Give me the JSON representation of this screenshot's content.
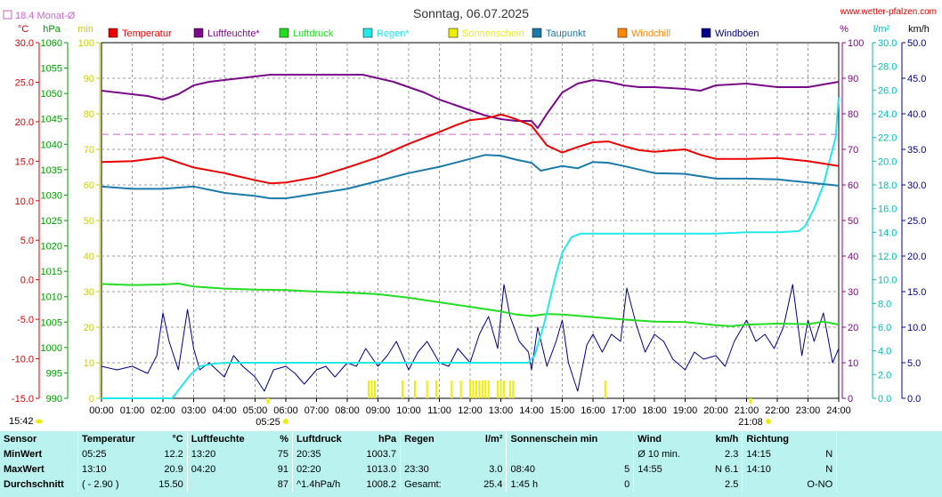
{
  "title": "Sonntag, 06.07.2025",
  "site": "www.wetter-pfalzen.com",
  "monthly_avg_label": "18.4 Monat-Ø",
  "unit_labels": {
    "celsius": "°C",
    "hpa": "hPa",
    "min": "min",
    "percent": "%",
    "lm2": "l/m²",
    "kmh": "km/h"
  },
  "time_labels": {
    "sunrise": "05:25",
    "sunset": "21:08",
    "left_time": "15:42"
  },
  "colors": {
    "temperature": "#ee0000",
    "humidity": "#7a0a8a",
    "pressure": "#22dd22",
    "rain": "#22e8e8",
    "sunshine": "#eeee00",
    "dewpoint": "#1a7aaa",
    "windchill": "#ff8800",
    "gusts": "#000088",
    "avg_line": "#cc66cc",
    "left_celsius": "#dd0000",
    "left_hpa": "#009900",
    "left_min": "#cccc00",
    "right_pct": "#880088",
    "right_lm2": "#00bbbb",
    "stats_bg": "#b9f2ee"
  },
  "chart_data": {
    "type": "line",
    "title": "Sonntag, 06.07.2025",
    "x_range_hours": [
      0,
      24
    ],
    "x_tick_labels": [
      "00:00",
      "01:00",
      "02:00",
      "03:00",
      "04:00",
      "05:00",
      "06:00",
      "07:00",
      "08:00",
      "09:00",
      "10:00",
      "11:00",
      "12:00",
      "13:00",
      "14:00",
      "15:00",
      "16:00",
      "17:00",
      "18:00",
      "19:00",
      "20:00",
      "21:00",
      "22:00",
      "23:00",
      "24:00"
    ],
    "axes": {
      "celsius": {
        "range": [
          -15,
          30
        ],
        "ticks": [
          "30.0",
          "25.0",
          "20.0",
          "15.0",
          "10.0",
          "5.0",
          "0.0",
          "-5.0",
          "-10.0",
          "-15.0"
        ]
      },
      "hpa": {
        "range": [
          990,
          1060
        ],
        "ticks": [
          "1060",
          "1055",
          "1050",
          "1045",
          "1040",
          "1035",
          "1030",
          "1025",
          "1020",
          "1015",
          "1010",
          "1005",
          "1000",
          "995",
          "990"
        ]
      },
      "min": {
        "range": [
          0,
          100
        ],
        "ticks": [
          "100",
          "90",
          "80",
          "70",
          "60",
          "50",
          "40",
          "30",
          "20",
          "10",
          "0"
        ]
      },
      "percent": {
        "range": [
          0,
          100
        ],
        "ticks": [
          "100",
          "90",
          "80",
          "70",
          "60",
          "50",
          "40",
          "30",
          "20",
          "10",
          "0"
        ]
      },
      "lm2": {
        "range": [
          0,
          30
        ],
        "ticks": [
          "30.0",
          "28.0",
          "26.0",
          "24.0",
          "22.0",
          "20.0",
          "18.0",
          "16.0",
          "14.0",
          "12.0",
          "10.0",
          "8.0",
          "6.0",
          "4.0",
          "2.0",
          "0.0"
        ]
      },
      "kmh": {
        "range": [
          0,
          50
        ],
        "ticks": [
          "50.0",
          "45.0",
          "40.0",
          "35.0",
          "30.0",
          "25.0",
          "20.0",
          "15.0",
          "10.0",
          "5.0",
          "0.0"
        ]
      }
    },
    "grid": true,
    "legend_position": "top",
    "monthly_avg_celsius": 18.4,
    "legend": [
      "Temperatur",
      "Luftfeuchte*",
      "Luftdruck",
      "Regen*",
      "Sonnenschein",
      "Taupunkt",
      "Windchill",
      "Windböen"
    ],
    "series": [
      {
        "name": "Temperatur",
        "axis": "celsius",
        "x": [
          0,
          1,
          2,
          3,
          4,
          5,
          5.5,
          6,
          7,
          8,
          9,
          10,
          11,
          11.5,
          12,
          12.5,
          13,
          13.2,
          13.5,
          14,
          14.5,
          15,
          15.5,
          16,
          16.5,
          17,
          17.5,
          18,
          19,
          19.5,
          20,
          21,
          22,
          23,
          24
        ],
        "y": [
          14.9,
          15.0,
          15.5,
          14.2,
          13.5,
          12.6,
          12.2,
          12.3,
          13.0,
          14.2,
          15.5,
          17.2,
          18.7,
          19.5,
          20.2,
          20.4,
          20.9,
          20.7,
          20.3,
          19.5,
          17.0,
          16.1,
          16.8,
          17.4,
          17.5,
          16.9,
          16.4,
          16.2,
          16.5,
          15.8,
          15.3,
          15.3,
          15.4,
          15.0,
          14.4
        ]
      },
      {
        "name": "Luftfeuchte*",
        "axis": "percent",
        "x": [
          0,
          1,
          1.5,
          2,
          2.5,
          3,
          3.5,
          4,
          4.5,
          5,
          5.5,
          6,
          7,
          8,
          8.5,
          9,
          9.5,
          10,
          10.5,
          11,
          11.5,
          12,
          12.5,
          13,
          13.5,
          14,
          14.2,
          14.5,
          15,
          15.5,
          16,
          16.5,
          17,
          17.5,
          18,
          19,
          19.5,
          20,
          21,
          22,
          23,
          24
        ],
        "y": [
          86.5,
          85.5,
          85,
          84,
          85.5,
          88,
          89,
          89.5,
          90,
          90.5,
          91,
          91,
          91,
          91,
          91,
          90,
          89,
          87.5,
          86,
          84,
          82.5,
          81,
          79.5,
          78.5,
          78,
          78,
          76,
          80,
          86,
          88.5,
          89.5,
          89,
          88,
          87.5,
          87.5,
          87,
          86.5,
          88,
          88.5,
          87.5,
          87.5,
          89
        ]
      },
      {
        "name": "Luftdruck",
        "axis": "hpa",
        "x": [
          0,
          1,
          2,
          2.5,
          3,
          4,
          5,
          6,
          7,
          8,
          9,
          10,
          11,
          12,
          13,
          13.5,
          14,
          14.5,
          15,
          16,
          17,
          18,
          19,
          20,
          20.5,
          21,
          22,
          23,
          23.5,
          24
        ],
        "y": [
          1012.5,
          1012.3,
          1012.4,
          1012.6,
          1012,
          1011.6,
          1011.4,
          1011.3,
          1011.0,
          1010.8,
          1010.5,
          1009.8,
          1008.9,
          1008.0,
          1007.1,
          1006.5,
          1006.2,
          1006.6,
          1006.5,
          1006.0,
          1005.5,
          1005.1,
          1005.0,
          1004.4,
          1004.2,
          1004.5,
          1004.7,
          1004.6,
          1005.1,
          1004.5
        ]
      },
      {
        "name": "Regen*",
        "axis": "lm2",
        "x": [
          0,
          2.3,
          2.6,
          2.9,
          3.2,
          3.6,
          4,
          5,
          6,
          7,
          8,
          9,
          10,
          11,
          12,
          13,
          13.9,
          14.1,
          14.4,
          14.8,
          15,
          15.3,
          15.6,
          16,
          17,
          18,
          19,
          20,
          21,
          22,
          22.7,
          22.9,
          23.2,
          23.5,
          23.7,
          23.9,
          24
        ],
        "y": [
          0,
          0,
          1.0,
          2.0,
          2.7,
          2.9,
          3.0,
          3.0,
          3.0,
          3.0,
          3.0,
          3.0,
          3.0,
          3.0,
          3.0,
          3.0,
          3.0,
          3.6,
          6.2,
          10.5,
          12.3,
          13.6,
          13.9,
          13.9,
          13.9,
          13.9,
          13.9,
          13.9,
          14.0,
          14.0,
          14.1,
          14.5,
          16.0,
          18.0,
          20.0,
          22.0,
          25.4
        ]
      },
      {
        "name": "Taupunkt",
        "axis": "celsius",
        "x": [
          0,
          1,
          2,
          3,
          4,
          5,
          5.5,
          6,
          7,
          8,
          9,
          10,
          11,
          12,
          12.5,
          13,
          13.5,
          14,
          14.3,
          15,
          15.5,
          16,
          16.5,
          17,
          18,
          19,
          20,
          21,
          22,
          23,
          24
        ],
        "y": [
          11.8,
          11.5,
          11.5,
          11.8,
          11.0,
          10.6,
          10.3,
          10.3,
          10.9,
          11.5,
          12.5,
          13.5,
          14.3,
          15.3,
          15.8,
          15.7,
          15.2,
          14.8,
          13.8,
          14.4,
          14.1,
          14.9,
          14.8,
          14.4,
          13.5,
          13.4,
          12.8,
          12.8,
          12.7,
          12.3,
          11.9
        ]
      },
      {
        "name": "Windböen",
        "axis": "kmh",
        "x": [
          0,
          0.5,
          1,
          1.5,
          1.8,
          2,
          2.2,
          2.5,
          2.8,
          3,
          3.2,
          3.5,
          4,
          4.3,
          4.6,
          5,
          5.3,
          5.6,
          6,
          6.3,
          6.6,
          7,
          7.3,
          7.6,
          8,
          8.3,
          8.6,
          9,
          9.3,
          9.6,
          10,
          10.3,
          10.6,
          11,
          11.3,
          11.6,
          12,
          12.3,
          12.6,
          12.9,
          13.1,
          13.3,
          13.6,
          13.9,
          14,
          14.2,
          14.5,
          14.8,
          15,
          15.2,
          15.5,
          15.8,
          16,
          16.3,
          16.6,
          16.9,
          17.1,
          17.4,
          17.7,
          18,
          18.3,
          18.6,
          19,
          19.3,
          19.6,
          20,
          20.3,
          20.6,
          21,
          21.3,
          21.6,
          21.9,
          22,
          22.2,
          22.5,
          22.8,
          23,
          23.2,
          23.5,
          23.8,
          24
        ],
        "y": [
          4.5,
          4.0,
          4.5,
          3.5,
          6,
          12,
          8,
          4,
          12.5,
          7,
          4,
          5,
          3,
          6,
          4.5,
          3,
          1,
          4,
          4.5,
          3.5,
          2,
          4,
          4.5,
          3,
          5,
          4.5,
          7,
          4.5,
          6,
          8,
          4,
          6.5,
          8,
          5,
          4.5,
          7,
          5,
          9,
          11.5,
          7,
          16,
          11.5,
          8,
          6.5,
          4,
          10,
          4.5,
          8,
          11,
          5,
          1,
          7.5,
          9,
          6.5,
          9,
          8,
          15.5,
          10.5,
          6.5,
          9,
          8,
          5.5,
          4,
          6.5,
          5.5,
          6,
          4.5,
          8,
          11,
          8,
          9,
          7,
          8,
          10,
          16,
          6,
          11,
          8,
          12,
          5,
          7
        ]
      }
    ],
    "sunshine_bars_hours": [
      8.7,
      8.8,
      8.9,
      9.8,
      10.2,
      10.6,
      10.9,
      11.4,
      11.7,
      12.0,
      12.1,
      12.2,
      12.3,
      12.4,
      12.5,
      12.6,
      12.9,
      13.0,
      13.1,
      13.3,
      13.4,
      16.4
    ]
  },
  "stats": {
    "headers": [
      {
        "name": "Sensor",
        "unit": ""
      },
      {
        "name": "Temperatur",
        "unit": "°C"
      },
      {
        "name": "Luftfeuchte",
        "unit": "%"
      },
      {
        "name": "Luftdruck",
        "unit": "hPa"
      },
      {
        "name": "Regen",
        "unit": "l/m²"
      },
      {
        "name": "Sonnenschein min",
        "unit": ""
      },
      {
        "name": "Wind",
        "unit": "km/h"
      },
      {
        "name": "Richtung",
        "unit": ""
      }
    ],
    "rows": [
      {
        "label": "MinWert",
        "temp_t": "05:25",
        "temp_v": "12.2",
        "hum_t": "13:20",
        "hum_v": "75",
        "pres_t": "20:35",
        "pres_v": "1003.7",
        "rain_t": "",
        "rain_v": "",
        "sun_t": "",
        "sun_v": "",
        "wind_t": "Ø 10 min.",
        "wind_v": "2.3",
        "dir_t": "14:15",
        "dir_v": "N"
      },
      {
        "label": "MaxWert",
        "temp_t": "13:10",
        "temp_v": "20.9",
        "hum_t": "04:20",
        "hum_v": "91",
        "pres_t": "02:20",
        "pres_v": "1013.0",
        "rain_t": "23:30",
        "rain_v": "3.0",
        "sun_t": "08:40",
        "sun_v": "5",
        "wind_t": "14:55",
        "wind_v": "N 6.1",
        "dir_t": "14:10",
        "dir_v": "N"
      },
      {
        "label": "Durchschnitt",
        "temp_t": "( - 2.90 )",
        "temp_v": "15.50",
        "hum_t": "",
        "hum_v": "87",
        "pres_t": "^1.4hPa/h",
        "pres_v": "1008.2",
        "rain_t": "Gesamt:",
        "rain_v": "25.4",
        "sun_t": "1:45 h",
        "sun_v": "0",
        "wind_t": "",
        "wind_v": "2.5",
        "dir_t": "",
        "dir_v": "O-NO"
      }
    ]
  }
}
